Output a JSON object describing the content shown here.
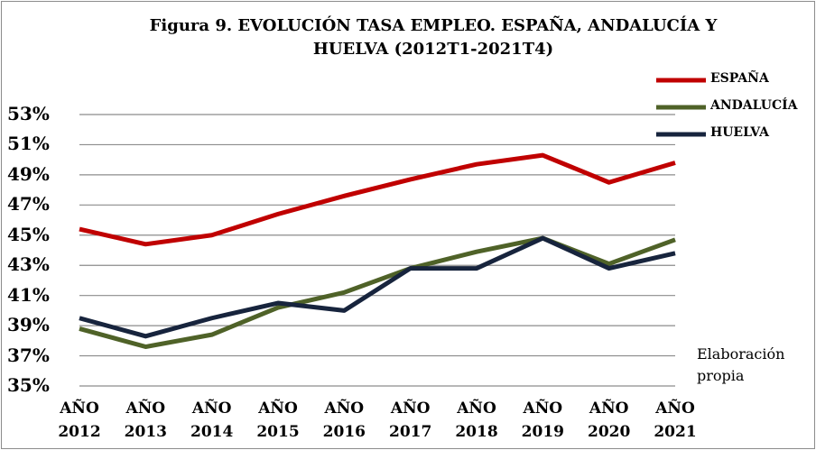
{
  "chart_data": {
    "type": "line",
    "title": "Figura 9. EVOLUCIÓN TASA EMPLEO. ESPAÑA, ANDALUCÍA Y HUELVA  (2012T1-2021T4)",
    "categories": [
      "AÑO 2012",
      "AÑO 2013",
      "AÑO 2014",
      "AÑO 2015",
      "AÑO 2016",
      "AÑO 2017",
      "AÑO 2018",
      "AÑO 2019",
      "AÑO 2020",
      "AÑO 2021"
    ],
    "series": [
      {
        "name": "ESPAÑA",
        "color": "#c00000",
        "values": [
          45.4,
          44.4,
          45.0,
          46.4,
          47.6,
          48.7,
          49.7,
          50.3,
          48.5,
          49.8
        ]
      },
      {
        "name": "ANDALUCÍA",
        "color": "#4f6228",
        "values": [
          38.8,
          37.6,
          38.4,
          40.2,
          41.2,
          42.8,
          43.9,
          44.8,
          43.1,
          44.7
        ]
      },
      {
        "name": "HUELVA",
        "color": "#17243d",
        "values": [
          39.5,
          38.3,
          39.5,
          40.5,
          40.0,
          42.8,
          42.8,
          44.8,
          42.8,
          43.8
        ]
      }
    ],
    "ylim": [
      35,
      53
    ],
    "yticks": [
      {
        "value": 35,
        "label": "35%"
      },
      {
        "value": 37,
        "label": "37%"
      },
      {
        "value": 39,
        "label": "39%"
      },
      {
        "value": 41,
        "label": "41%"
      },
      {
        "value": 43,
        "label": "43%"
      },
      {
        "value": 45,
        "label": "45%"
      },
      {
        "value": 47,
        "label": "47%"
      },
      {
        "value": 49,
        "label": "49%"
      },
      {
        "value": 51,
        "label": "51%"
      },
      {
        "value": 53,
        "label": "53%"
      }
    ],
    "grid": true,
    "annotation": "Elaboración propia"
  }
}
